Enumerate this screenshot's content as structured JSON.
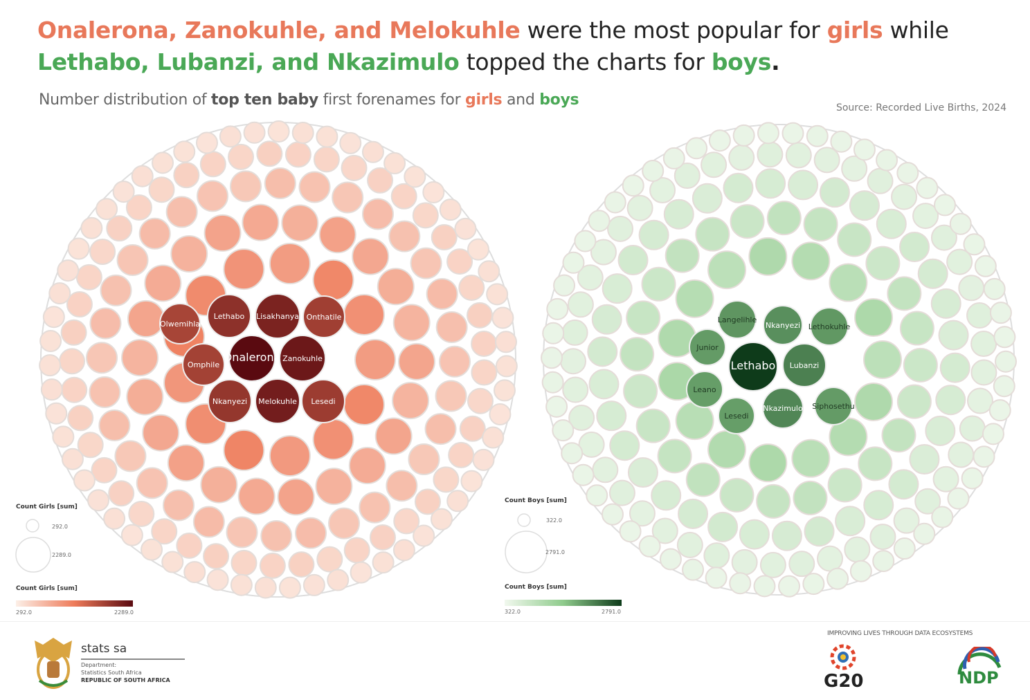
{
  "header": {
    "line1": {
      "names": "Onalerona, Zanokuhle, and Melokuhle",
      "mid": " were the most popular for ",
      "girls": "girls",
      "end": " while"
    },
    "line2": {
      "names": "Lethabo, Lubanzi, and Nkazimulo",
      "mid": " topped the charts for ",
      "boys": "boys",
      "end": "."
    },
    "subtitle": {
      "a": "Number distribution of ",
      "b": "top ten baby",
      "c": " first forenames for ",
      "girls": "girls",
      "d": " and ",
      "boys": "boys"
    },
    "source": "Source: Recorded Live Births, 2024"
  },
  "colors": {
    "girls_accent": "#e8785a",
    "boys_accent": "#4aa856",
    "girls_scale": [
      "#fcefe7",
      "#ee7b5a",
      "#5a0a10"
    ],
    "boys_scale": [
      "#f1f8ee",
      "#8fcb8c",
      "#0e3b1a"
    ]
  },
  "chart_data": [
    {
      "type": "packed-bubble",
      "title": "Count Girls [sum]",
      "size_legend": {
        "title": "Count Girls [sum]",
        "min": "292.0",
        "max": "2289.0"
      },
      "color_legend": {
        "title": "Count Girls [sum]",
        "min": "292.0",
        "max": "2289.0"
      },
      "range": [
        292,
        2289
      ],
      "labelled": [
        {
          "name": "Onalerona",
          "value": 2289
        },
        {
          "name": "Zanokuhle",
          "value": 2050
        },
        {
          "name": "Melokuhle",
          "value": 1950
        },
        {
          "name": "Lisakhanya",
          "value": 1850
        },
        {
          "name": "Lethabo",
          "value": 1600
        },
        {
          "name": "Nkanyezi",
          "value": 1500
        },
        {
          "name": "Lesedi",
          "value": 1400
        },
        {
          "name": "Onthatile",
          "value": 1350
        },
        {
          "name": "Omphile",
          "value": 1300
        },
        {
          "name": "Olwemihla",
          "value": 1250
        }
      ]
    },
    {
      "type": "packed-bubble",
      "title": "Count Boys [sum]",
      "size_legend": {
        "title": "Count Boys [sum]",
        "min": "322.0",
        "max": "2791.0"
      },
      "color_legend": {
        "title": "Count Boys [sum]",
        "min": "322.0",
        "max": "2791.0"
      },
      "range": [
        322,
        2791
      ],
      "labelled": [
        {
          "name": "Lethabo",
          "value": 2791
        },
        {
          "name": "Lubanzi",
          "value": 1600
        },
        {
          "name": "Nkazimulo",
          "value": 1500
        },
        {
          "name": "Nkanyezi",
          "value": 1350
        },
        {
          "name": "Langelihle",
          "value": 1250
        },
        {
          "name": "Lethokuhle",
          "value": 1200
        },
        {
          "name": "Siphosethu",
          "value": 1150
        },
        {
          "name": "Junior",
          "value": 1150
        },
        {
          "name": "Lesedi",
          "value": 1100
        },
        {
          "name": "Leano",
          "value": 1100
        }
      ]
    }
  ],
  "footer": {
    "org": "stats sa",
    "dept1": "Department:",
    "dept2": "Statistics South Africa",
    "dept3": "REPUBLIC OF SOUTH AFRICA",
    "tagline": "IMPROVING LIVES THROUGH DATA ECOSYSTEMS",
    "g20": "G20",
    "ndp": "NDP"
  }
}
